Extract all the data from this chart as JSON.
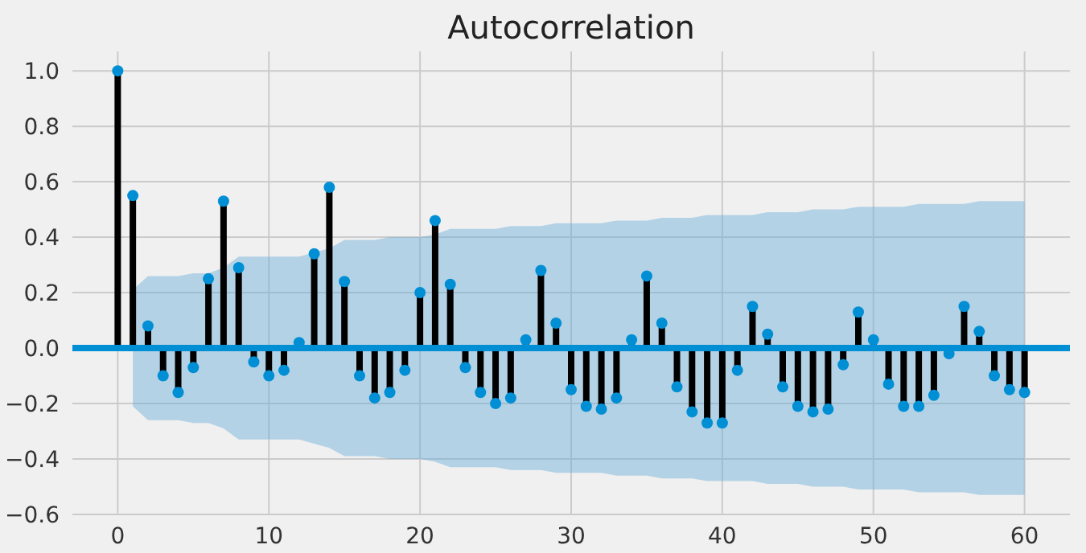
{
  "chart_data": {
    "type": "lollipop",
    "title": "Autocorrelation",
    "x": [
      0,
      1,
      2,
      3,
      4,
      5,
      6,
      7,
      8,
      9,
      10,
      11,
      12,
      13,
      14,
      15,
      16,
      17,
      18,
      19,
      20,
      21,
      22,
      23,
      24,
      25,
      26,
      27,
      28,
      29,
      30,
      31,
      32,
      33,
      34,
      35,
      36,
      37,
      38,
      39,
      40,
      41,
      42,
      43,
      44,
      45,
      46,
      47,
      48,
      49,
      50,
      51,
      52,
      53,
      54,
      55,
      56,
      57,
      58,
      59,
      60
    ],
    "series": [
      {
        "color": "#008fd5",
        "values": [
          1.0,
          0.55,
          0.08,
          -0.1,
          -0.16,
          -0.07,
          0.25,
          0.53,
          0.29,
          -0.05,
          -0.1,
          -0.08,
          0.02,
          0.34,
          0.58,
          0.24,
          -0.1,
          -0.18,
          -0.16,
          -0.08,
          0.2,
          0.46,
          0.23,
          -0.07,
          -0.16,
          -0.2,
          -0.18,
          0.03,
          0.28,
          0.09,
          -0.15,
          -0.21,
          -0.22,
          -0.18,
          0.03,
          0.26,
          0.09,
          -0.14,
          -0.23,
          -0.27,
          -0.27,
          -0.08,
          0.15,
          0.05,
          -0.14,
          -0.21,
          -0.23,
          -0.22,
          -0.06,
          0.13,
          0.03,
          -0.13,
          -0.21,
          -0.21,
          -0.17,
          -0.02,
          0.15,
          0.06,
          -0.1,
          -0.15,
          -0.16
        ],
        "upper": [
          null,
          0.21,
          0.26,
          0.26,
          0.26,
          0.27,
          0.27,
          0.29,
          0.33,
          0.33,
          0.33,
          0.33,
          0.33,
          null,
          0.36,
          0.39,
          0.39,
          0.39,
          0.4,
          0.4,
          0.4,
          0.41,
          0.43,
          0.43,
          0.43,
          0.43,
          0.44,
          0.44,
          0.44,
          0.45,
          0.45,
          0.45,
          0.45,
          0.46,
          0.46,
          0.46,
          0.47,
          0.47,
          0.47,
          0.48,
          0.48,
          0.48,
          0.48,
          0.49,
          0.49,
          0.49,
          0.5,
          0.5,
          0.5,
          0.51,
          0.51,
          0.51,
          0.51,
          0.52,
          0.52,
          0.52,
          0.52,
          0.53,
          0.53,
          0.53,
          0.53
        ],
        "lower": [
          null,
          -0.21,
          -0.26,
          -0.26,
          -0.26,
          -0.27,
          -0.27,
          -0.29,
          -0.33,
          -0.33,
          -0.33,
          -0.33,
          -0.33,
          null,
          -0.36,
          -0.39,
          -0.39,
          -0.39,
          -0.4,
          -0.4,
          -0.4,
          -0.41,
          -0.43,
          -0.43,
          -0.43,
          -0.43,
          -0.44,
          -0.44,
          -0.44,
          -0.45,
          -0.45,
          -0.45,
          -0.45,
          -0.46,
          -0.46,
          -0.46,
          -0.47,
          -0.47,
          -0.47,
          -0.48,
          -0.48,
          -0.48,
          -0.48,
          -0.49,
          -0.49,
          -0.49,
          -0.5,
          -0.5,
          -0.5,
          -0.51,
          -0.51,
          -0.51,
          -0.51,
          -0.52,
          -0.52,
          -0.52,
          -0.52,
          -0.53,
          -0.53,
          -0.53,
          -0.53
        ]
      }
    ],
    "xlim": [
      -3,
      63
    ],
    "ylim": [
      -0.6,
      1.07
    ],
    "xticks": [
      0,
      10,
      20,
      30,
      40,
      50,
      60
    ],
    "yticks": [
      {
        "value": -0.6,
        "label": "−0.6"
      },
      {
        "value": -0.4,
        "label": "−0.4"
      },
      {
        "value": -0.2,
        "label": "−0.2"
      },
      {
        "value": 0,
        "label": "0.0"
      },
      {
        "value": 0.2,
        "label": "0.2"
      },
      {
        "value": 0.4,
        "label": "0.4"
      },
      {
        "value": 0.6,
        "label": "0.6"
      },
      {
        "value": 0.8,
        "label": "0.8"
      },
      {
        "value": 1.0,
        "label": "1.0"
      }
    ],
    "grid": true,
    "marker": "circle",
    "ref_lines": [
      {
        "axis": "y",
        "value": 0,
        "color": "#008fd5"
      }
    ]
  }
}
